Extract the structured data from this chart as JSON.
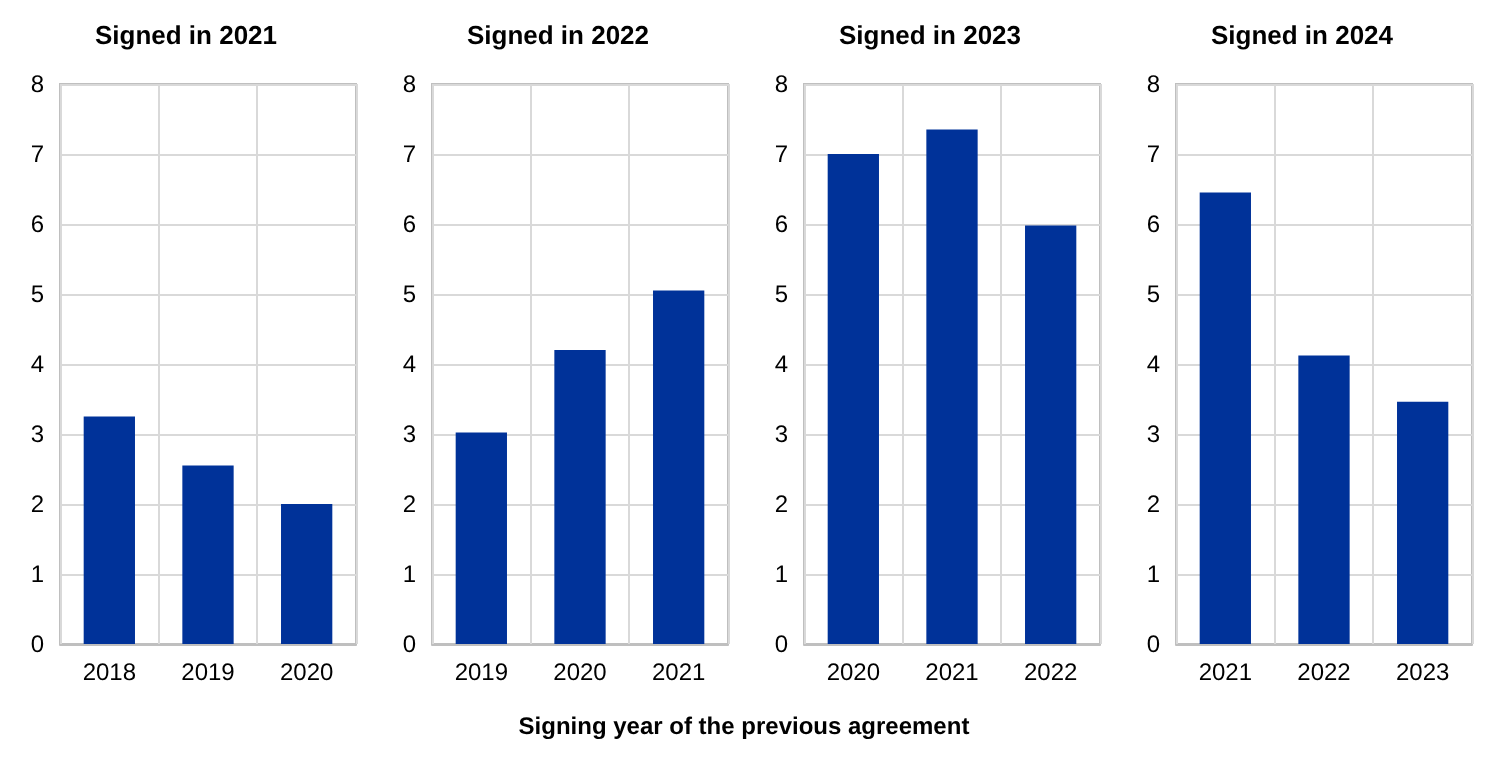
{
  "chart_data": [
    {
      "type": "bar",
      "title": "Signed in 2021",
      "annotations": [
        "Signing year of the previous agreement"
      ],
      "categories": [
        "2018",
        "2019",
        "2020"
      ],
      "values": [
        3.25,
        2.55,
        2.0
      ],
      "color": "#003299",
      "ylim": [
        0,
        8
      ],
      "yticks": [
        0,
        1,
        2,
        3,
        4,
        5,
        6,
        7,
        8
      ],
      "grid": true
    },
    {
      "type": "bar",
      "title": "Signed in 2022",
      "categories": [
        "2019",
        "2020",
        "2021"
      ],
      "values": [
        3.02,
        4.2,
        5.05
      ],
      "color": "#003299",
      "ylim": [
        0,
        8
      ],
      "yticks": [
        0,
        1,
        2,
        3,
        4,
        5,
        6,
        7,
        8
      ],
      "grid": true
    },
    {
      "type": "bar",
      "title": "Signed in 2023",
      "categories": [
        "2020",
        "2021",
        "2022"
      ],
      "values": [
        7.0,
        7.35,
        5.98
      ],
      "color": "#003299",
      "ylim": [
        0,
        8
      ],
      "yticks": [
        0,
        1,
        2,
        3,
        4,
        5,
        6,
        7,
        8
      ],
      "grid": true
    },
    {
      "type": "bar",
      "title": "Signed in 2024",
      "categories": [
        "2021",
        "2022",
        "2023"
      ],
      "values": [
        6.45,
        4.12,
        3.46
      ],
      "color": "#003299",
      "ylim": [
        0,
        8
      ],
      "yticks": [
        0,
        1,
        2,
        3,
        4,
        5,
        6,
        7,
        8
      ],
      "grid": true
    }
  ]
}
